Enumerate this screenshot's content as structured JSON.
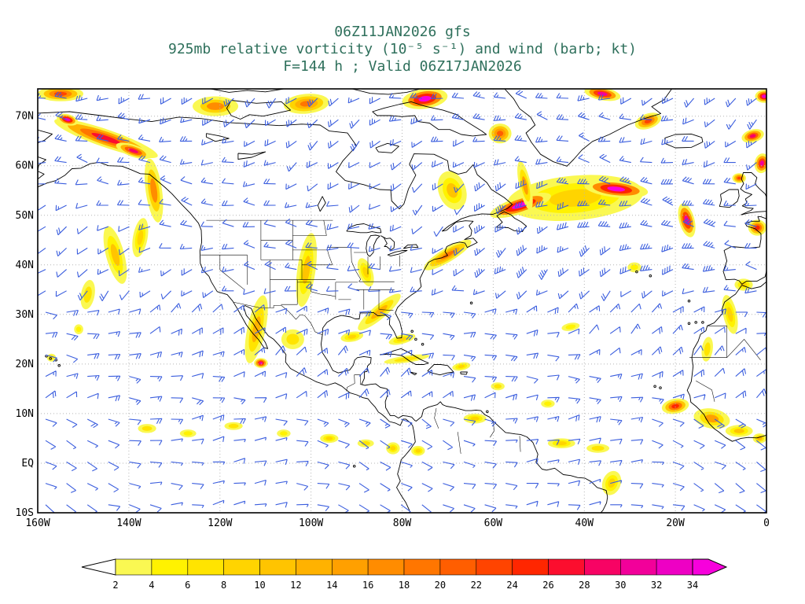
{
  "header": {
    "line1": "06Z11JAN2026 gfs",
    "line2": "925mb relative vorticity (10⁻⁵ s⁻¹) and wind (barb; kt)",
    "line3": "F=144 h ; Valid 06Z17JAN2026"
  },
  "styles": {
    "title_color": "#2f705c",
    "axis_label_color": "#000000",
    "grid_color": "#b5b5b5",
    "coast_color": "#000000",
    "background": "#ffffff"
  },
  "chart_data": {
    "type": "map_contour_wind",
    "model": "gfs",
    "model_run": "06Z11JAN2026",
    "field": "925mb relative vorticity",
    "field_units": "10⁻⁵ s⁻¹",
    "wind_display": "barb",
    "wind_units": "kt",
    "forecast": "F=144 h",
    "valid": "06Z17JAN2026",
    "grid_style": "dotted",
    "extent": {
      "lon_min": -160,
      "lon_max": 0,
      "lat_min": -10,
      "lat_max": 75.5
    },
    "lon_tick_values": [
      -160,
      -140,
      -120,
      -100,
      -80,
      -60,
      -40,
      -20,
      0
    ],
    "lon_tick_labels": [
      "160W",
      "140W",
      "120W",
      "100W",
      "80W",
      "60W",
      "40W",
      "20W",
      "0"
    ],
    "lat_tick_values": [
      70,
      60,
      50,
      40,
      30,
      20,
      10,
      0,
      -10
    ],
    "lat_tick_labels": [
      "70N",
      "60N",
      "50N",
      "40N",
      "30N",
      "20N",
      "10N",
      "EQ",
      "10S"
    ],
    "wind_barb_color": "#3b5ede",
    "colorbar": {
      "levels": [
        2,
        4,
        6,
        8,
        10,
        12,
        14,
        16,
        18,
        20,
        22,
        24,
        26,
        28,
        30,
        32,
        34
      ],
      "colors": [
        "#faf852",
        "#fff200",
        "#ffe400",
        "#ffd400",
        "#ffc400",
        "#ffb200",
        "#ffa000",
        "#ff8c00",
        "#ff7600",
        "#ff5e00",
        "#ff4400",
        "#ff2600",
        "#fc0e2e",
        "#f70364",
        "#f2009a",
        "#ee00c4"
      ],
      "under_color": "#ffffff",
      "over_color": "#f700dc"
    },
    "features_format": [
      "lon",
      "lat",
      "rx_deg",
      "ry_deg",
      "rotation_deg",
      "max_value"
    ],
    "features": [
      [
        -155,
        74.5,
        5,
        1.5,
        0,
        22
      ],
      [
        -145,
        65.5,
        12,
        1.8,
        19,
        26
      ],
      [
        -153.5,
        69.3,
        2.4,
        1.1,
        15,
        32
      ],
      [
        -139,
        63,
        4,
        1.2,
        19,
        28
      ],
      [
        -134.5,
        55,
        1.8,
        6.5,
        -8,
        16
      ],
      [
        -137.5,
        45.5,
        1.6,
        4,
        10,
        8
      ],
      [
        -121,
        72,
        5,
        2,
        0,
        16
      ],
      [
        -101,
        72.5,
        5,
        2,
        -5,
        18
      ],
      [
        -75,
        73.5,
        5,
        2,
        -8,
        34
      ],
      [
        -58.5,
        66.5,
        2.5,
        2,
        0,
        20
      ],
      [
        -69,
        55,
        3,
        4,
        -20,
        10
      ],
      [
        -42,
        53.5,
        15,
        4.5,
        -5,
        8
      ],
      [
        -54,
        52,
        7,
        1.7,
        -18,
        34
      ],
      [
        -33,
        55.3,
        7,
        1.7,
        6,
        34
      ],
      [
        -17.5,
        49,
        1.7,
        3.5,
        -15,
        30
      ],
      [
        -53,
        56,
        1.3,
        5,
        -12,
        14
      ],
      [
        -36,
        74.5,
        4,
        1.3,
        10,
        30
      ],
      [
        -26,
        69,
        3,
        1.5,
        -20,
        22
      ],
      [
        -3,
        66,
        2.5,
        1.3,
        -15,
        28
      ],
      [
        -0.5,
        74,
        2,
        1.3,
        0,
        32
      ],
      [
        -1,
        60.5,
        1.6,
        2,
        10,
        30
      ],
      [
        -6,
        57.5,
        1.5,
        1,
        0,
        22
      ],
      [
        -2,
        47.5,
        2,
        1.6,
        0,
        24
      ],
      [
        -85,
        30.5,
        6,
        1.4,
        -40,
        12
      ],
      [
        -70,
        42,
        6,
        1.4,
        -31,
        18
      ],
      [
        -91,
        25.5,
        2.5,
        1,
        -10,
        8
      ],
      [
        -80,
        25,
        3,
        0.9,
        -15,
        8
      ],
      [
        -79,
        21,
        5,
        0.7,
        -8,
        6
      ],
      [
        -67,
        19.5,
        2,
        0.8,
        -10,
        8
      ],
      [
        -112,
        27,
        2,
        7,
        12,
        12
      ],
      [
        -111,
        20.2,
        1.5,
        1,
        0,
        30
      ],
      [
        -104,
        25,
        2.5,
        2,
        0,
        6
      ],
      [
        -101,
        39,
        2,
        7.5,
        8,
        10
      ],
      [
        -88,
        38.5,
        1.5,
        3,
        -20,
        8
      ],
      [
        -143,
        42,
        2,
        6,
        -15,
        10
      ],
      [
        -149,
        34,
        1.5,
        3,
        10,
        6
      ],
      [
        -151,
        27,
        1,
        1,
        0,
        4
      ],
      [
        -157,
        21.3,
        1,
        0.8,
        0,
        6
      ],
      [
        -136,
        7,
        2,
        0.9,
        0,
        6
      ],
      [
        -127,
        6,
        1.8,
        0.8,
        0,
        4
      ],
      [
        -117,
        7.5,
        2,
        0.8,
        0,
        6
      ],
      [
        -106,
        6,
        1.5,
        0.8,
        0,
        4
      ],
      [
        -96,
        5,
        2,
        0.9,
        0,
        8
      ],
      [
        -88,
        4,
        1.8,
        0.8,
        0,
        6
      ],
      [
        -82,
        3,
        1.5,
        1.2,
        0,
        8
      ],
      [
        -76.5,
        2.5,
        1.5,
        1,
        0,
        8
      ],
      [
        -64,
        9,
        2.5,
        1,
        0,
        8
      ],
      [
        -59,
        15.5,
        1.5,
        0.8,
        0,
        6
      ],
      [
        -48,
        12,
        1.5,
        0.8,
        0,
        4
      ],
      [
        -45,
        4,
        3,
        1,
        0,
        8
      ],
      [
        -37,
        3,
        2.5,
        0.9,
        0,
        6
      ],
      [
        -34,
        -4,
        2,
        2.5,
        20,
        8
      ],
      [
        -20,
        11.5,
        3,
        1.5,
        -10,
        24
      ],
      [
        -12,
        9,
        4,
        2,
        10,
        14
      ],
      [
        -6,
        6.5,
        3,
        1.2,
        0,
        10
      ],
      [
        -1.5,
        5,
        1.5,
        1,
        0,
        12
      ],
      [
        -8,
        30,
        1.5,
        4,
        -12,
        8
      ],
      [
        -13,
        23,
        1.2,
        2.5,
        8,
        6
      ],
      [
        -5,
        36,
        2,
        1.2,
        0,
        8
      ],
      [
        -29,
        39.5,
        1.5,
        1,
        0,
        4
      ],
      [
        -43,
        27.5,
        2,
        0.8,
        -10,
        4
      ]
    ]
  }
}
